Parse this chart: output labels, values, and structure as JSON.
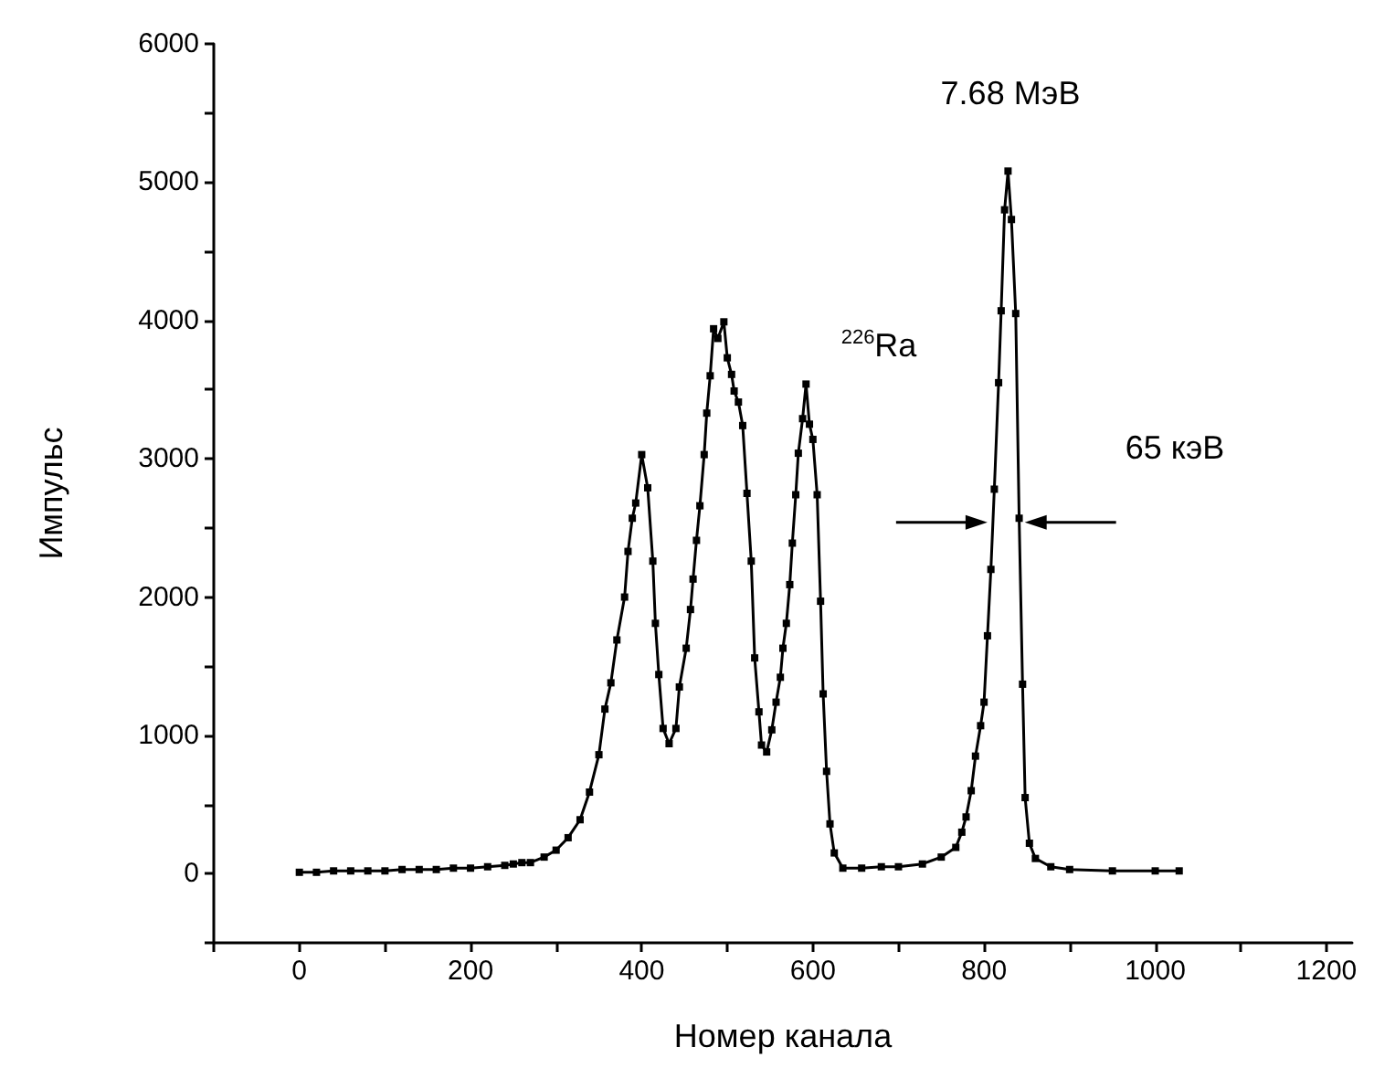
{
  "chart_data": {
    "type": "line",
    "xlabel": "Номер канала",
    "ylabel": "Импульс",
    "marker": "square",
    "line_style": "solid",
    "xlim": [
      -100,
      1230
    ],
    "xticks": [
      {
        "value": -100,
        "label": null
      },
      0,
      {
        "value": 100,
        "label": null
      },
      200,
      {
        "value": 300,
        "label": null
      },
      400,
      {
        "value": 500,
        "label": null
      },
      600,
      {
        "value": 700,
        "label": null
      },
      800,
      {
        "value": 900,
        "label": null
      },
      1000,
      {
        "value": 1100,
        "label": null
      },
      1200
    ],
    "ylim": [
      -500,
      6000
    ],
    "yticks": [
      {
        "value": -500,
        "label": null
      },
      0,
      {
        "value": 500,
        "label": null
      },
      1000,
      {
        "value": 1500,
        "label": null
      },
      2000,
      {
        "value": 2500,
        "label": null
      },
      3000,
      {
        "value": 3500,
        "label": null
      },
      4000,
      {
        "value": 4500,
        "label": null
      },
      5000,
      {
        "value": 5500,
        "label": null
      },
      6000
    ],
    "series": [
      {
        "color": "#000000",
        "x": [
          0,
          20,
          40,
          60,
          80,
          100,
          120,
          140,
          160,
          180,
          200,
          220,
          240,
          250,
          260,
          270,
          286,
          300,
          314,
          328,
          339,
          350,
          357,
          364,
          371,
          380,
          384,
          389,
          393,
          400,
          407,
          413,
          416,
          420,
          425,
          432,
          440,
          444,
          452,
          457,
          460,
          464,
          468,
          473,
          476,
          480,
          484,
          489,
          496,
          500,
          505,
          508,
          513,
          518,
          523,
          528,
          532,
          537,
          540,
          546,
          552,
          557,
          562,
          565,
          569,
          573,
          576,
          580,
          583,
          588,
          592,
          596,
          600,
          605,
          609,
          612,
          616,
          620,
          625,
          635,
          657,
          680,
          700,
          728,
          750,
          767,
          774,
          779,
          785,
          790,
          796,
          800,
          804,
          808,
          812,
          817,
          820,
          824,
          828,
          832,
          837,
          841,
          845,
          848,
          853,
          860,
          878,
          900,
          950,
          1000,
          1028
        ],
        "values": [
          10,
          10,
          20,
          20,
          20,
          20,
          30,
          30,
          30,
          40,
          40,
          50,
          60,
          70,
          80,
          80,
          120,
          170,
          260,
          390,
          590,
          860,
          1190,
          1380,
          1690,
          2000,
          2330,
          2570,
          2680,
          3030,
          2790,
          2260,
          1810,
          1440,
          1050,
          940,
          1050,
          1350,
          1630,
          1910,
          2130,
          2410,
          2660,
          3030,
          3330,
          3600,
          3940,
          3870,
          3990,
          3730,
          3610,
          3490,
          3410,
          3240,
          2750,
          2260,
          1560,
          1170,
          930,
          880,
          1040,
          1240,
          1420,
          1630,
          1810,
          2090,
          2390,
          2740,
          3040,
          3290,
          3540,
          3250,
          3140,
          2740,
          1970,
          1300,
          740,
          360,
          150,
          40,
          40,
          50,
          50,
          70,
          120,
          190,
          300,
          410,
          600,
          850,
          1070,
          1240,
          1720,
          2200,
          2780,
          3550,
          4070,
          4800,
          5080,
          4730,
          4050,
          2570,
          1370,
          550,
          220,
          110,
          50,
          30,
          20,
          20,
          20
        ]
      }
    ],
    "annotations": [
      "7.68 МэВ",
      "$^{226}$Ra",
      "65 кэВ"
    ]
  }
}
